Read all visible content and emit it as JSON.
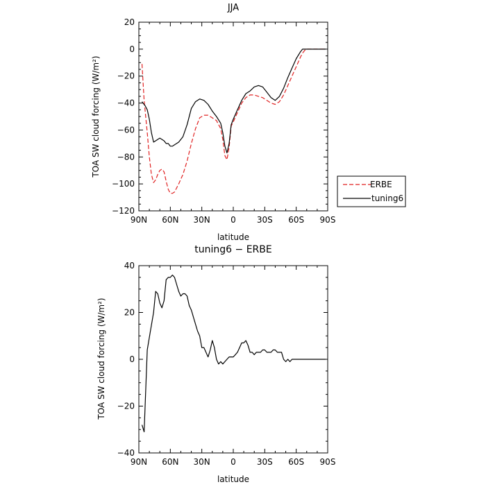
{
  "chart_data": [
    {
      "type": "line",
      "title": "JJA",
      "xlabel": "latitude",
      "ylabel": "TOA SW cloud forcing (W/m²)",
      "xlim": [
        90,
        -90
      ],
      "ylim": [
        -120,
        20
      ],
      "x_ticks": [
        "90N",
        "60N",
        "30N",
        "0",
        "30S",
        "60S",
        "90S"
      ],
      "y_ticks": [
        "20",
        "0",
        "−20",
        "−40",
        "−60",
        "−80",
        "−100",
        "−120"
      ],
      "legend_position": "right",
      "series": [
        {
          "name": "ERBE",
          "color": "#e02020",
          "dash": "dashed",
          "x": [
            87,
            85,
            82,
            80,
            78,
            76,
            74,
            72,
            70,
            68,
            66,
            64,
            62,
            60,
            58,
            56,
            52,
            48,
            44,
            40,
            36,
            32,
            28,
            24,
            20,
            16,
            12,
            10,
            8,
            6,
            4,
            2,
            0,
            -4,
            -8,
            -12,
            -16,
            -20,
            -24,
            -28,
            -32,
            -36,
            -40,
            -44,
            -48,
            -52,
            -56,
            -60,
            -64,
            -66,
            -68,
            -70,
            -74,
            -78,
            -82,
            -86,
            -88
          ],
          "y": [
            -11,
            -38,
            -62,
            -80,
            -93,
            -99,
            -97,
            -93,
            -90,
            -89,
            -91,
            -98,
            -104,
            -107,
            -107,
            -106,
            -100,
            -93,
            -83,
            -70,
            -59,
            -51,
            -49,
            -49,
            -51,
            -53,
            -59,
            -67,
            -79,
            -82,
            -73,
            -57,
            -54,
            -47,
            -40,
            -36,
            -34,
            -34,
            -35,
            -36,
            -38,
            -40,
            -41,
            -39,
            -34,
            -27,
            -20,
            -13,
            -6,
            -3,
            -1,
            0,
            0,
            0,
            0,
            0,
            0
          ]
        },
        {
          "name": "tuning6",
          "color": "#000000",
          "dash": "solid",
          "x": [
            87,
            84,
            82,
            80,
            78,
            76,
            74,
            72,
            70,
            68,
            66,
            64,
            62,
            60,
            58,
            56,
            52,
            48,
            44,
            40,
            36,
            32,
            28,
            24,
            20,
            16,
            12,
            10,
            8,
            6,
            4,
            2,
            0,
            -4,
            -8,
            -12,
            -16,
            -20,
            -24,
            -28,
            -32,
            -36,
            -40,
            -44,
            -48,
            -52,
            -56,
            -60,
            -64,
            -66,
            -68,
            -70,
            -74,
            -78,
            -82,
            -86,
            -88
          ],
          "y": [
            -39,
            -42,
            -45,
            -52,
            -62,
            -69,
            -68,
            -67,
            -66,
            -67,
            -68,
            -70,
            -70,
            -72,
            -72,
            -71,
            -69,
            -65,
            -56,
            -44,
            -39,
            -37,
            -38,
            -41,
            -46,
            -50,
            -55,
            -62,
            -72,
            -77,
            -70,
            -56,
            -52,
            -45,
            -38,
            -33,
            -31,
            -28,
            -27,
            -28,
            -32,
            -36,
            -38,
            -35,
            -29,
            -21,
            -14,
            -7,
            -2,
            0,
            0,
            0,
            0,
            0,
            0,
            0,
            0
          ]
        }
      ]
    },
    {
      "type": "line",
      "title": "tuning6 − ERBE",
      "xlabel": "latitude",
      "ylabel": "TOA SW cloud forcing (W/m²)",
      "xlim": [
        90,
        -90
      ],
      "ylim": [
        -40,
        40
      ],
      "x_ticks": [
        "90N",
        "60N",
        "30N",
        "0",
        "30S",
        "60S",
        "90S"
      ],
      "y_ticks": [
        "40",
        "20",
        "0",
        "−20",
        "−40"
      ],
      "series": [
        {
          "color": "#000000",
          "dash": "solid",
          "x": [
            87,
            85,
            82,
            79,
            76,
            74,
            72,
            70,
            68,
            66,
            64,
            62,
            60,
            58,
            56,
            54,
            52,
            50,
            48,
            46,
            44,
            42,
            40,
            38,
            36,
            34,
            32,
            30,
            28,
            26,
            24,
            22,
            20,
            18,
            16,
            14,
            12,
            10,
            8,
            6,
            4,
            2,
            0,
            -2,
            -4,
            -6,
            -8,
            -10,
            -12,
            -14,
            -16,
            -18,
            -20,
            -22,
            -24,
            -26,
            -28,
            -30,
            -32,
            -34,
            -36,
            -38,
            -40,
            -42,
            -44,
            -46,
            -48,
            -50,
            -52,
            -54,
            -56,
            -58,
            -60,
            -62,
            -64,
            -66,
            -68,
            -70,
            -72,
            -74,
            -76,
            -78,
            -80,
            -82,
            -84,
            -86,
            -88
          ],
          "y": [
            -28,
            -31,
            4,
            12,
            20,
            29,
            28,
            24,
            22,
            25,
            34,
            35,
            35,
            36,
            35,
            32,
            29,
            27,
            28,
            28,
            27,
            23,
            21,
            18,
            15,
            12,
            10,
            5,
            5,
            3,
            1,
            4,
            8,
            5,
            0,
            -2,
            -1,
            -2,
            -1,
            0,
            1,
            1,
            1,
            2,
            3,
            5,
            7,
            7,
            8,
            6,
            3,
            3,
            2,
            3,
            3,
            3,
            4,
            4,
            3,
            3,
            3,
            4,
            4,
            3,
            3,
            3,
            0,
            -1,
            0,
            -1,
            0,
            0,
            0,
            0,
            0,
            0,
            0,
            0,
            0,
            0,
            0,
            0,
            0,
            0,
            0,
            0,
            0
          ]
        }
      ]
    }
  ]
}
